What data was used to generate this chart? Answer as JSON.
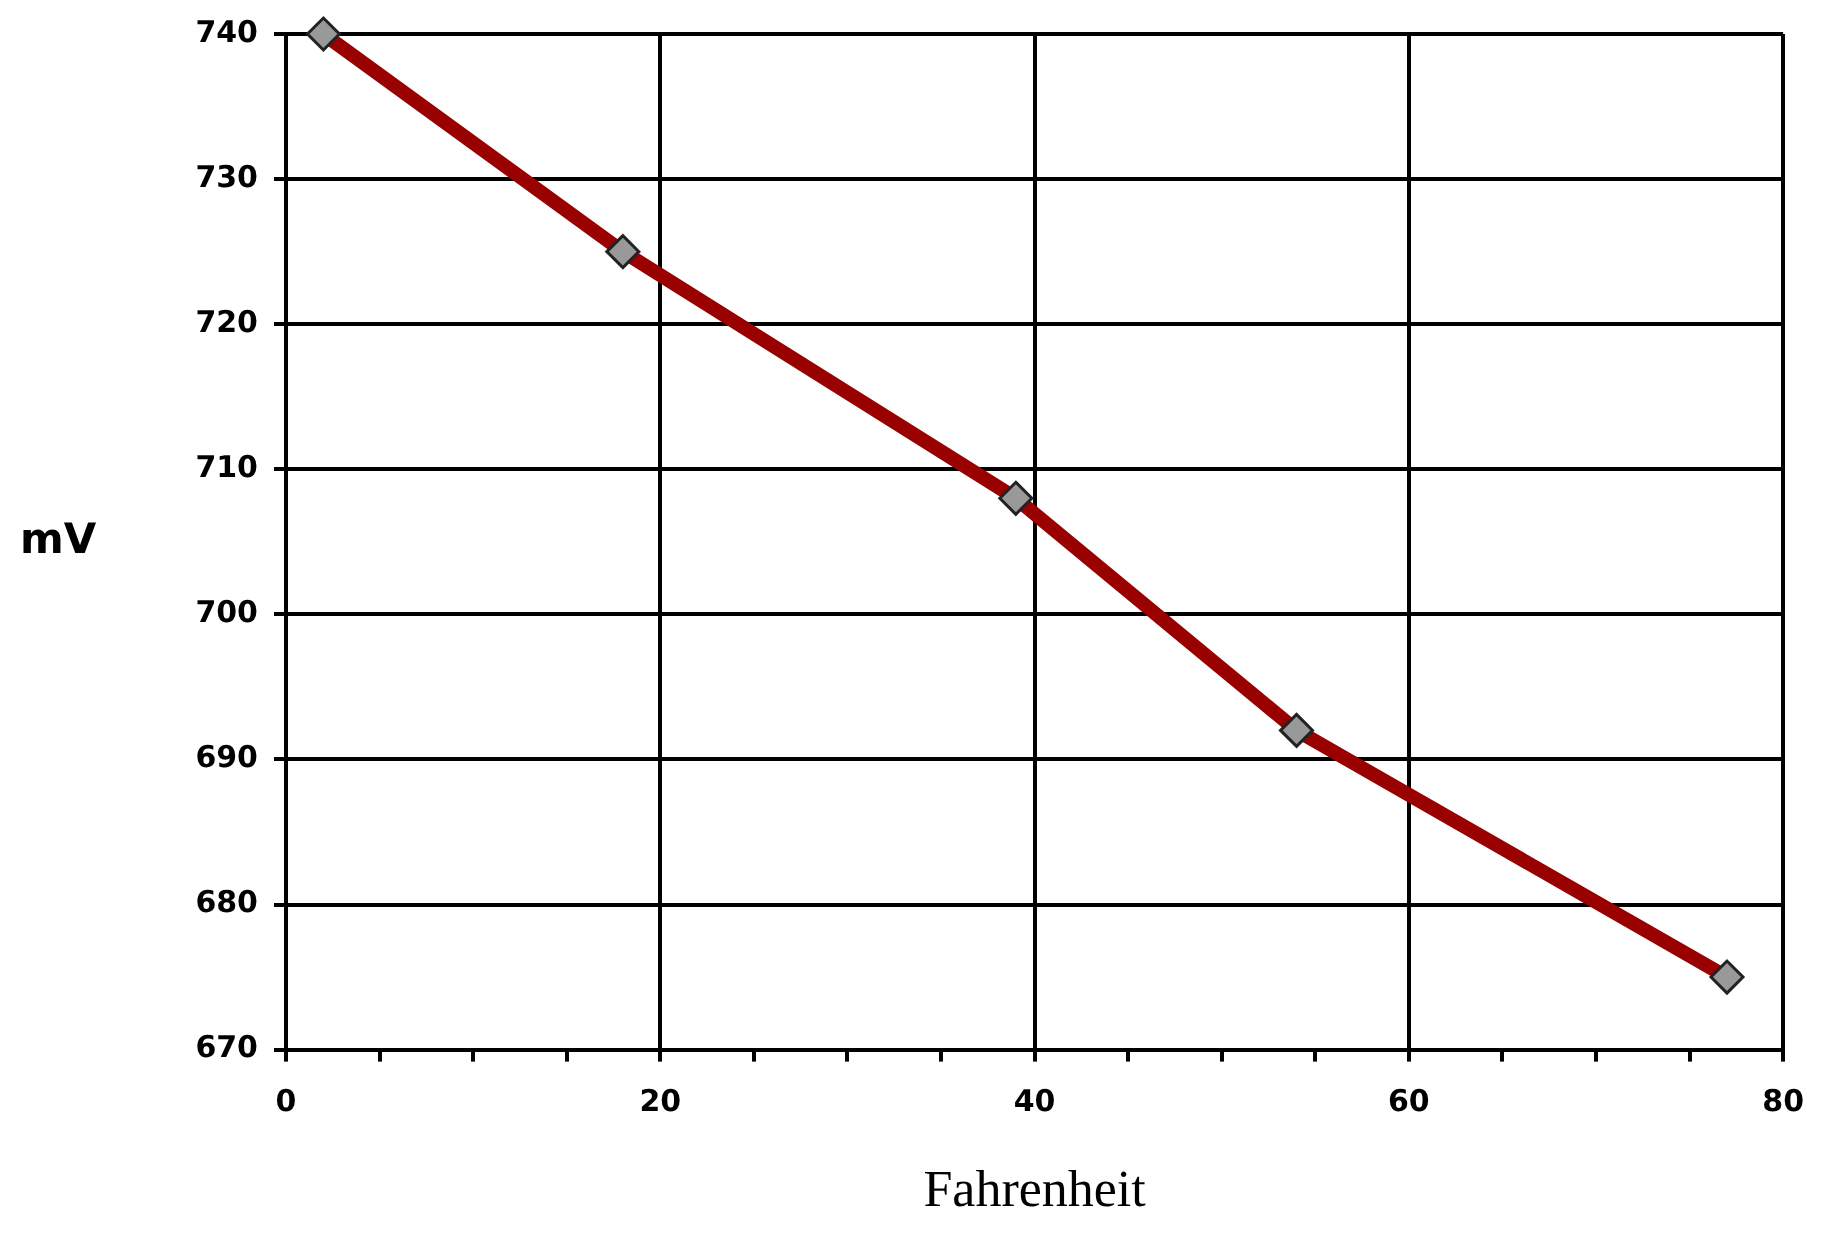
{
  "chart_data": {
    "type": "line",
    "xlabel": "Fahrenheit",
    "ylabel": "mV",
    "x": [
      2,
      18,
      39,
      54,
      77
    ],
    "series": [
      {
        "color": "#990000",
        "values": [
          740,
          725,
          708,
          692,
          675
        ]
      }
    ],
    "xlim": [
      0,
      80
    ],
    "xticks": [
      0,
      {
        "value": 5,
        "label": null
      },
      {
        "value": 10,
        "label": null
      },
      {
        "value": 15,
        "label": null
      },
      20,
      {
        "value": 25,
        "label": null
      },
      {
        "value": 30,
        "label": null
      },
      {
        "value": 35,
        "label": null
      },
      40,
      {
        "value": 45,
        "label": null
      },
      {
        "value": 50,
        "label": null
      },
      {
        "value": 55,
        "label": null
      },
      60,
      {
        "value": 65,
        "label": null
      },
      {
        "value": 70,
        "label": null
      },
      {
        "value": 75,
        "label": null
      },
      80
    ],
    "ylim": [
      670,
      740
    ],
    "yticks": [
      670,
      680,
      690,
      700,
      710,
      720,
      730,
      740
    ],
    "grid": true,
    "marker": "diamond",
    "line_style": "solid"
  }
}
